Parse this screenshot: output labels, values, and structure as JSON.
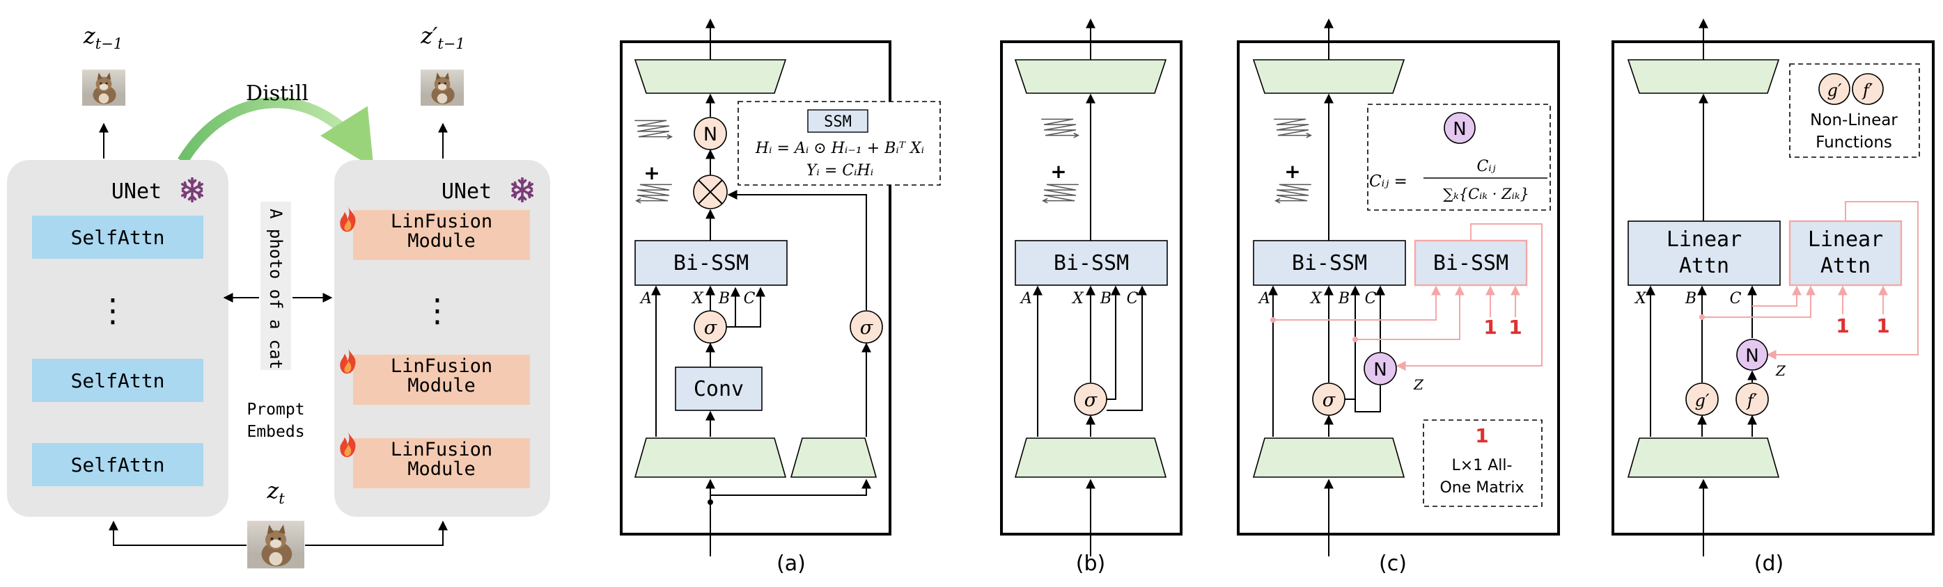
{
  "colors": {
    "panel_grey": "#e6e6e6",
    "selfattn_blue": "#a9d8f0",
    "linfusion_orange": "#f4cbb2",
    "trapezoid_green": "#e1f0d8",
    "bissm_blue": "#dce6f2",
    "circle_peach": "#fbe4d5",
    "circle_purple": "#e4c8f0",
    "pink_line": "#f4a7a7",
    "red_one": "#e03030",
    "snowflake": "#7a3b78",
    "flame": "#e8452c",
    "distill_arrow": "#9ad47a"
  },
  "left": {
    "z_prev": "z",
    "z_prev_sub": "t−1",
    "z_prev_prime": "z′",
    "z_prev_prime_sub": "t−1",
    "z_t": "z",
    "z_t_sub": "t",
    "distill": "Distill",
    "teacher_title": "UNet",
    "student_title": "UNet",
    "teacher_blocks": [
      "SelfAttn",
      "SelfAttn",
      "SelfAttn"
    ],
    "student_blocks": [
      "LinFusion\nModule",
      "LinFusion\nModule",
      "LinFusion\nModule"
    ],
    "ellipsis": "⋮",
    "prompt": "A photo of a cat",
    "prompt_label_1": "Prompt",
    "prompt_label_2": "Embeds",
    "icons": [
      "snowflake-icon",
      "flame-icon",
      "cat-image"
    ]
  },
  "panel_a": {
    "caption": "(a)",
    "n_label": "N",
    "ssm_title": "SSM",
    "ssm_eq1": "Hᵢ = Aᵢ ⊙ Hᵢ₋₁ + Bᵢᵀ Xᵢ",
    "ssm_eq2": "Yᵢ = CᵢHᵢ",
    "bissm": "Bi-SSM",
    "conv": "Conv",
    "sigma": "σ",
    "plus": "+",
    "inputs": [
      "A",
      "X",
      "B",
      "C"
    ]
  },
  "panel_b": {
    "caption": "(b)",
    "bissm": "Bi-SSM",
    "sigma": "σ",
    "plus": "+",
    "inputs": [
      "A",
      "X",
      "B",
      "C"
    ]
  },
  "panel_c": {
    "caption": "(c)",
    "n_label": "N",
    "eq_lhs": "Cᵢⱼ =",
    "eq_num": "Cᵢⱼ",
    "eq_den": "∑ₖ{Cᵢₖ · Zᵢₖ}",
    "bissm_left": "Bi-SSM",
    "bissm_right": "Bi-SSM",
    "sigma": "σ",
    "z_label": "Z",
    "plus": "+",
    "one": "1",
    "legend_one": "1",
    "legend_line1": "L×1 All-",
    "legend_line2": "One Matrix",
    "inputs": [
      "A",
      "X",
      "B",
      "C"
    ]
  },
  "panel_d": {
    "caption": "(d)",
    "legend_g": "g′",
    "legend_f": "f′",
    "legend_line1": "Non-Linear",
    "legend_line2": "Functions",
    "attn_left_1": "Linear",
    "attn_left_2": "Attn",
    "attn_right_1": "Linear",
    "attn_right_2": "Attn",
    "n_label": "N",
    "z_label": "Z",
    "g": "g′",
    "f": "f′",
    "one": "1",
    "inputs": [
      "X",
      "B",
      "C"
    ]
  }
}
